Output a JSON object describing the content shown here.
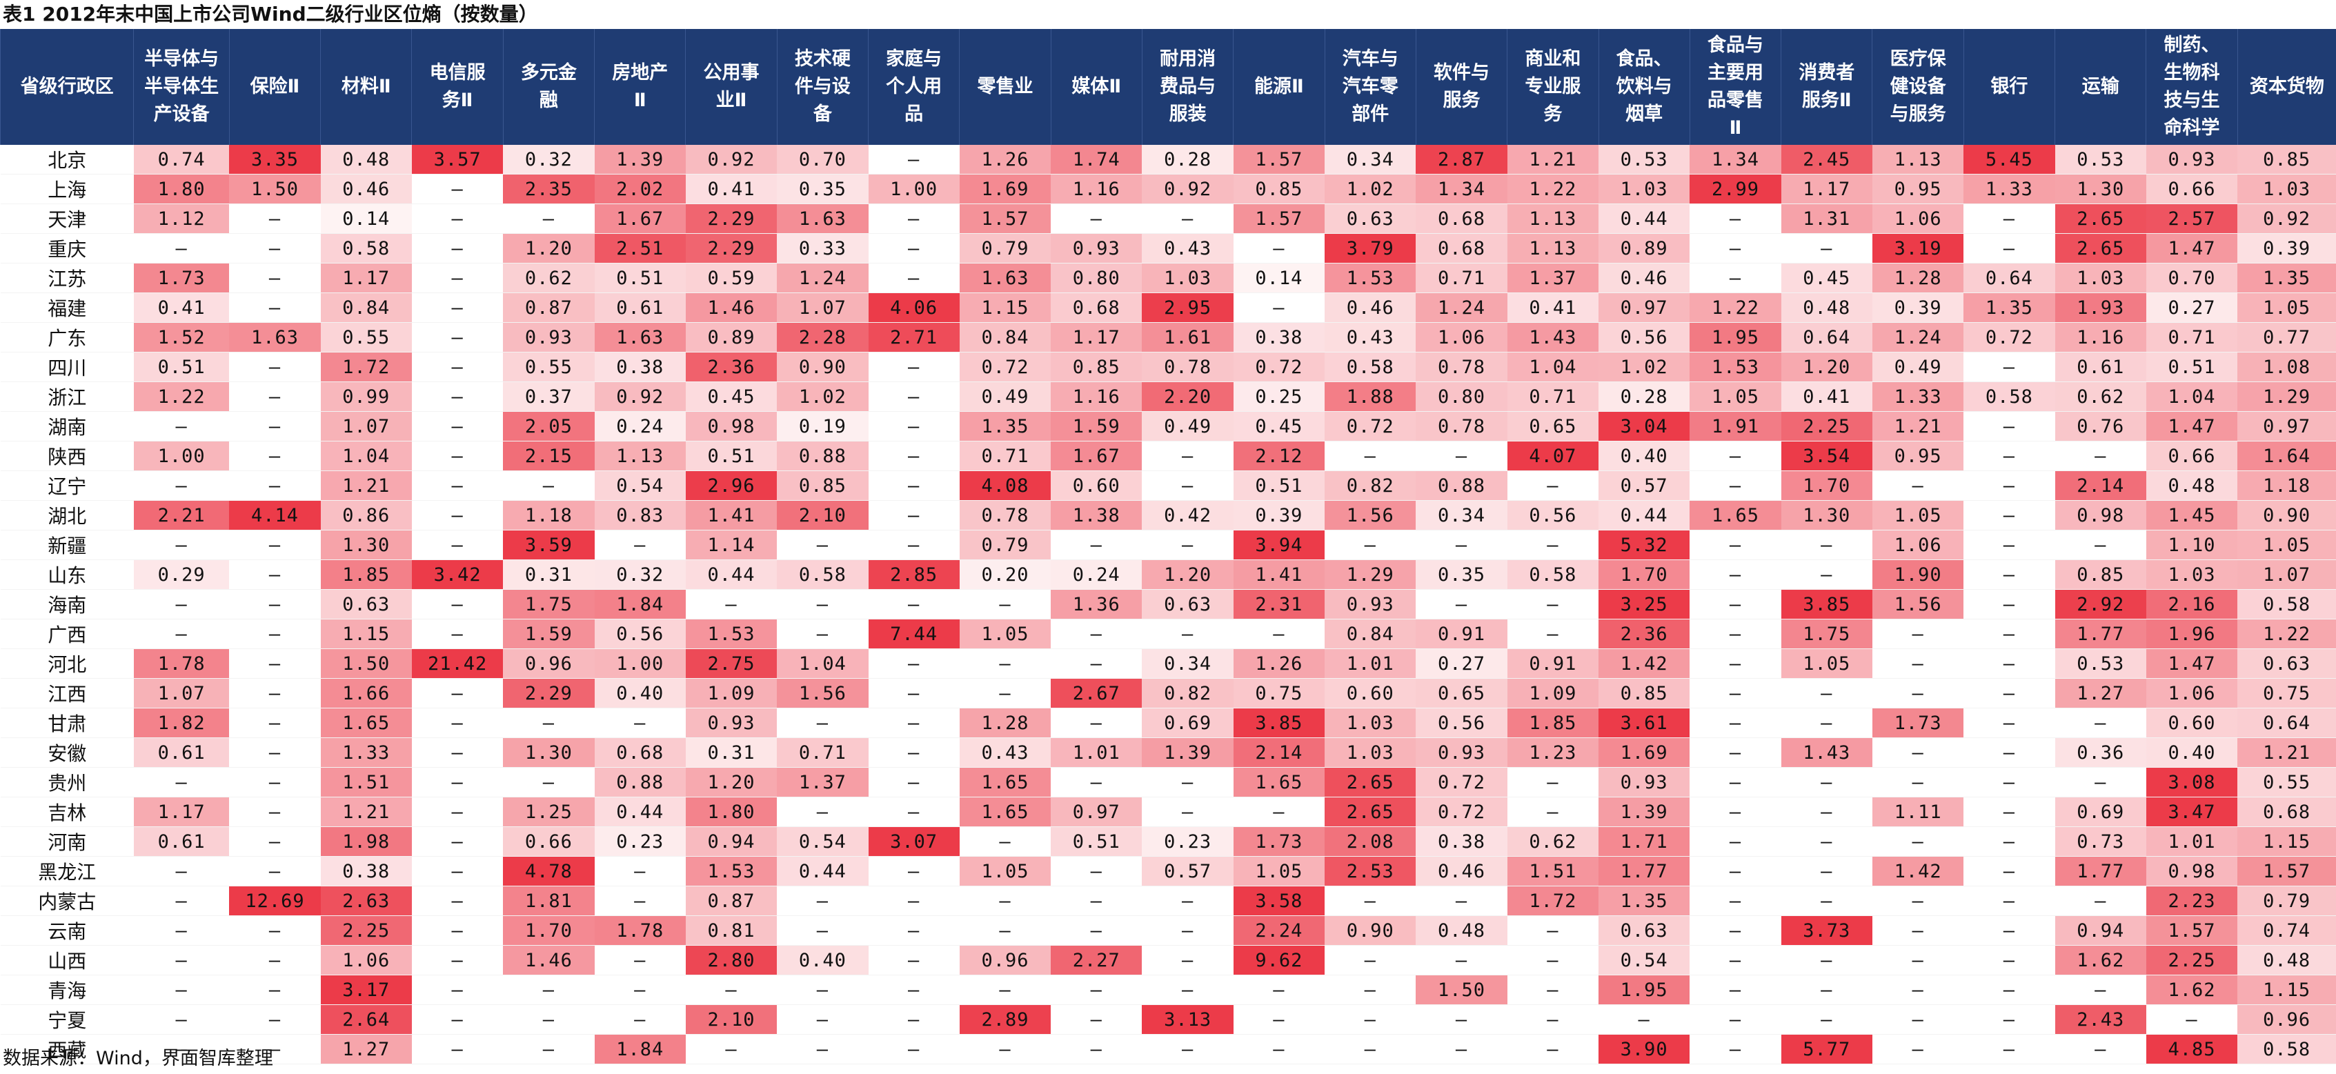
{
  "title": "表1 2012年末中国上市公司Wind二级行业区位熵（按数量）",
  "source": "数据来源：Wind，界面智库整理",
  "scale": {
    "min": 0,
    "max": 3,
    "high_color": "#ec3b49",
    "low_color": "#ffffff"
  },
  "headers": [
    [
      "省级行政区"
    ],
    [
      "半导体与",
      "半导体生",
      "产设备"
    ],
    [
      "保险Ⅱ"
    ],
    [
      "材料Ⅱ"
    ],
    [
      "电信服",
      "务Ⅱ"
    ],
    [
      "多元金",
      "融"
    ],
    [
      "房地产",
      "Ⅱ"
    ],
    [
      "公用事",
      "业Ⅱ"
    ],
    [
      "技术硬",
      "件与设",
      "备"
    ],
    [
      "家庭与",
      "个人用",
      "品"
    ],
    [
      "零售业"
    ],
    [
      "媒体Ⅱ"
    ],
    [
      "耐用消",
      "费品与",
      "服装"
    ],
    [
      "能源Ⅱ"
    ],
    [
      "汽车与",
      "汽车零",
      "部件"
    ],
    [
      "软件与",
      "服务"
    ],
    [
      "商业和",
      "专业服",
      "务"
    ],
    [
      "食品、",
      "饮料与",
      "烟草"
    ],
    [
      "食品与",
      "主要用",
      "品零售",
      "Ⅱ"
    ],
    [
      "消费者",
      "服务Ⅱ"
    ],
    [
      "医疗保",
      "健设备",
      "与服务"
    ],
    [
      "银行"
    ],
    [
      "运输"
    ],
    [
      "制药、",
      "生物科",
      "技与生",
      "命科学"
    ],
    [
      "资本货物"
    ]
  ],
  "rows": [
    {
      "province": "北京",
      "values": [
        "0.74",
        "3.35",
        "0.48",
        "3.57",
        "0.32",
        "1.39",
        "0.92",
        "0.70",
        "–",
        "1.26",
        "1.74",
        "0.28",
        "1.57",
        "0.34",
        "2.87",
        "1.21",
        "0.53",
        "1.34",
        "2.45",
        "1.13",
        "5.45",
        "0.53",
        "0.93",
        "0.85"
      ]
    },
    {
      "province": "上海",
      "values": [
        "1.80",
        "1.50",
        "0.46",
        "–",
        "2.35",
        "2.02",
        "0.41",
        "0.35",
        "1.00",
        "1.69",
        "1.16",
        "0.92",
        "0.85",
        "1.02",
        "1.34",
        "1.22",
        "1.03",
        "2.99",
        "1.17",
        "0.95",
        "1.33",
        "1.30",
        "0.66",
        "1.03"
      ]
    },
    {
      "province": "天津",
      "values": [
        "1.12",
        "–",
        "0.14",
        "–",
        "–",
        "1.67",
        "2.29",
        "1.63",
        "–",
        "1.57",
        "–",
        "–",
        "1.57",
        "0.63",
        "0.68",
        "1.13",
        "0.44",
        "–",
        "1.31",
        "1.06",
        "–",
        "2.65",
        "2.57",
        "0.92"
      ]
    },
    {
      "province": "重庆",
      "values": [
        "–",
        "–",
        "0.58",
        "–",
        "1.20",
        "2.51",
        "2.29",
        "0.33",
        "–",
        "0.79",
        "0.93",
        "0.43",
        "–",
        "3.79",
        "0.68",
        "1.13",
        "0.89",
        "–",
        "–",
        "3.19",
        "–",
        "2.65",
        "1.47",
        "0.39"
      ]
    },
    {
      "province": "江苏",
      "values": [
        "1.73",
        "–",
        "1.17",
        "–",
        "0.62",
        "0.51",
        "0.59",
        "1.24",
        "–",
        "1.63",
        "0.80",
        "1.03",
        "0.14",
        "1.53",
        "0.71",
        "1.37",
        "0.46",
        "–",
        "0.45",
        "1.28",
        "0.64",
        "1.03",
        "0.70",
        "1.35"
      ]
    },
    {
      "province": "福建",
      "values": [
        "0.41",
        "–",
        "0.84",
        "–",
        "0.87",
        "0.61",
        "1.46",
        "1.07",
        "4.06",
        "1.15",
        "0.68",
        "2.95",
        "–",
        "0.46",
        "1.24",
        "0.41",
        "0.97",
        "1.22",
        "0.48",
        "0.39",
        "1.35",
        "1.93",
        "0.27",
        "1.05"
      ]
    },
    {
      "province": "广东",
      "values": [
        "1.52",
        "1.63",
        "0.55",
        "–",
        "0.93",
        "1.63",
        "0.89",
        "2.28",
        "2.71",
        "0.84",
        "1.17",
        "1.61",
        "0.38",
        "0.43",
        "1.06",
        "1.43",
        "0.56",
        "1.95",
        "0.64",
        "1.24",
        "0.72",
        "1.16",
        "0.71",
        "0.77"
      ]
    },
    {
      "province": "四川",
      "values": [
        "0.51",
        "–",
        "1.72",
        "–",
        "0.55",
        "0.38",
        "2.36",
        "0.90",
        "–",
        "0.72",
        "0.85",
        "0.78",
        "0.72",
        "0.58",
        "0.78",
        "1.04",
        "1.02",
        "1.53",
        "1.20",
        "0.49",
        "–",
        "0.61",
        "0.51",
        "1.08"
      ]
    },
    {
      "province": "浙江",
      "values": [
        "1.22",
        "–",
        "0.99",
        "–",
        "0.37",
        "0.92",
        "0.45",
        "1.02",
        "–",
        "0.49",
        "1.16",
        "2.20",
        "0.25",
        "1.88",
        "0.80",
        "0.71",
        "0.28",
        "1.05",
        "0.41",
        "1.33",
        "0.58",
        "0.62",
        "1.04",
        "1.29"
      ]
    },
    {
      "province": "湖南",
      "values": [
        "–",
        "–",
        "1.07",
        "–",
        "2.05",
        "0.24",
        "0.98",
        "0.19",
        "–",
        "1.35",
        "1.59",
        "0.49",
        "0.45",
        "0.72",
        "0.78",
        "0.65",
        "3.04",
        "1.91",
        "2.25",
        "1.21",
        "–",
        "0.76",
        "1.47",
        "0.97"
      ]
    },
    {
      "province": "陕西",
      "values": [
        "1.00",
        "–",
        "1.04",
        "–",
        "2.15",
        "1.13",
        "0.51",
        "0.88",
        "–",
        "0.71",
        "1.67",
        "–",
        "2.12",
        "–",
        "–",
        "4.07",
        "0.40",
        "–",
        "3.54",
        "0.95",
        "–",
        "–",
        "0.66",
        "1.64"
      ]
    },
    {
      "province": "辽宁",
      "values": [
        "–",
        "–",
        "1.21",
        "–",
        "–",
        "0.54",
        "2.96",
        "0.85",
        "–",
        "4.08",
        "0.60",
        "–",
        "0.51",
        "0.82",
        "0.88",
        "–",
        "0.57",
        "–",
        "1.70",
        "–",
        "–",
        "2.14",
        "0.48",
        "1.18"
      ]
    },
    {
      "province": "湖北",
      "values": [
        "2.21",
        "4.14",
        "0.86",
        "–",
        "1.18",
        "0.83",
        "1.41",
        "2.10",
        "–",
        "0.78",
        "1.38",
        "0.42",
        "0.39",
        "1.56",
        "0.34",
        "0.56",
        "0.44",
        "1.65",
        "1.30",
        "1.05",
        "–",
        "0.98",
        "1.45",
        "0.90"
      ]
    },
    {
      "province": "新疆",
      "values": [
        "–",
        "–",
        "1.30",
        "–",
        "3.59",
        "–",
        "1.14",
        "–",
        "–",
        "0.79",
        "–",
        "–",
        "3.94",
        "–",
        "–",
        "–",
        "5.32",
        "–",
        "–",
        "1.06",
        "–",
        "–",
        "1.10",
        "1.05"
      ]
    },
    {
      "province": "山东",
      "values": [
        "0.29",
        "–",
        "1.85",
        "3.42",
        "0.31",
        "0.32",
        "0.44",
        "0.58",
        "2.85",
        "0.20",
        "0.24",
        "1.20",
        "1.41",
        "1.29",
        "0.35",
        "0.58",
        "1.70",
        "–",
        "–",
        "1.90",
        "–",
        "0.85",
        "1.03",
        "1.07"
      ]
    },
    {
      "province": "海南",
      "values": [
        "–",
        "–",
        "0.63",
        "–",
        "1.75",
        "1.84",
        "–",
        "–",
        "–",
        "–",
        "1.36",
        "0.63",
        "2.31",
        "0.93",
        "–",
        "–",
        "3.25",
        "–",
        "3.85",
        "1.56",
        "–",
        "2.92",
        "2.16",
        "0.58"
      ]
    },
    {
      "province": "广西",
      "values": [
        "–",
        "–",
        "1.15",
        "–",
        "1.59",
        "0.56",
        "1.53",
        "–",
        "7.44",
        "1.05",
        "–",
        "–",
        "–",
        "0.84",
        "0.91",
        "–",
        "2.36",
        "–",
        "1.75",
        "–",
        "–",
        "1.77",
        "1.96",
        "1.22"
      ]
    },
    {
      "province": "河北",
      "values": [
        "1.78",
        "–",
        "1.50",
        "21.42",
        "0.96",
        "1.00",
        "2.75",
        "1.04",
        "–",
        "–",
        "–",
        "0.34",
        "1.26",
        "1.01",
        "0.27",
        "0.91",
        "1.42",
        "–",
        "1.05",
        "–",
        "–",
        "0.53",
        "1.47",
        "0.63"
      ]
    },
    {
      "province": "江西",
      "values": [
        "1.07",
        "–",
        "1.66",
        "–",
        "2.29",
        "0.40",
        "1.09",
        "1.56",
        "–",
        "–",
        "2.67",
        "0.82",
        "0.75",
        "0.60",
        "0.65",
        "1.09",
        "0.85",
        "–",
        "–",
        "–",
        "–",
        "1.27",
        "1.06",
        "0.75"
      ]
    },
    {
      "province": "甘肃",
      "values": [
        "1.82",
        "–",
        "1.65",
        "–",
        "–",
        "–",
        "0.93",
        "–",
        "–",
        "1.28",
        "–",
        "0.69",
        "3.85",
        "1.03",
        "0.56",
        "1.85",
        "3.61",
        "–",
        "–",
        "1.73",
        "–",
        "–",
        "0.60",
        "0.64"
      ]
    },
    {
      "province": "安徽",
      "values": [
        "0.61",
        "–",
        "1.33",
        "–",
        "1.30",
        "0.68",
        "0.31",
        "0.71",
        "–",
        "0.43",
        "1.01",
        "1.39",
        "2.14",
        "1.03",
        "0.93",
        "1.23",
        "1.69",
        "–",
        "1.43",
        "–",
        "–",
        "0.36",
        "0.40",
        "1.21"
      ]
    },
    {
      "province": "贵州",
      "values": [
        "–",
        "–",
        "1.51",
        "–",
        "–",
        "0.88",
        "1.20",
        "1.37",
        "–",
        "1.65",
        "–",
        "–",
        "1.65",
        "2.65",
        "0.72",
        "–",
        "0.93",
        "–",
        "–",
        "–",
        "–",
        "–",
        "3.08",
        "0.55"
      ]
    },
    {
      "province": "吉林",
      "values": [
        "1.17",
        "–",
        "1.21",
        "–",
        "1.25",
        "0.44",
        "1.80",
        "–",
        "–",
        "1.65",
        "0.97",
        "–",
        "–",
        "2.65",
        "0.72",
        "–",
        "1.39",
        "–",
        "–",
        "1.11",
        "–",
        "0.69",
        "3.47",
        "0.68"
      ]
    },
    {
      "province": "河南",
      "values": [
        "0.61",
        "–",
        "1.98",
        "–",
        "0.66",
        "0.23",
        "0.94",
        "0.54",
        "3.07",
        "–",
        "0.51",
        "0.23",
        "1.73",
        "2.08",
        "0.38",
        "0.62",
        "1.71",
        "–",
        "–",
        "–",
        "–",
        "0.73",
        "1.01",
        "1.15"
      ]
    },
    {
      "province": "黑龙江",
      "values": [
        "–",
        "–",
        "0.38",
        "–",
        "4.78",
        "–",
        "1.53",
        "0.44",
        "–",
        "1.05",
        "–",
        "0.57",
        "1.05",
        "2.53",
        "0.46",
        "1.51",
        "1.77",
        "–",
        "–",
        "1.42",
        "–",
        "1.77",
        "0.98",
        "1.57"
      ]
    },
    {
      "province": "内蒙古",
      "values": [
        "–",
        "12.69",
        "2.63",
        "–",
        "1.81",
        "–",
        "0.87",
        "–",
        "–",
        "–",
        "–",
        "–",
        "3.58",
        "–",
        "–",
        "1.72",
        "1.35",
        "–",
        "–",
        "–",
        "–",
        "–",
        "2.23",
        "0.79"
      ]
    },
    {
      "province": "云南",
      "values": [
        "–",
        "–",
        "2.25",
        "–",
        "1.70",
        "1.78",
        "0.81",
        "–",
        "–",
        "–",
        "–",
        "–",
        "2.24",
        "0.90",
        "0.48",
        "–",
        "0.63",
        "–",
        "3.73",
        "–",
        "–",
        "0.94",
        "1.57",
        "0.74"
      ]
    },
    {
      "province": "山西",
      "values": [
        "–",
        "–",
        "1.06",
        "–",
        "1.46",
        "–",
        "2.80",
        "0.40",
        "–",
        "0.96",
        "2.27",
        "–",
        "9.62",
        "–",
        "–",
        "–",
        "0.54",
        "–",
        "–",
        "–",
        "–",
        "1.62",
        "2.25",
        "0.48"
      ]
    },
    {
      "province": "青海",
      "values": [
        "–",
        "–",
        "3.17",
        "–",
        "–",
        "–",
        "–",
        "–",
        "–",
        "–",
        "–",
        "–",
        "–",
        "–",
        "1.50",
        "–",
        "1.95",
        "–",
        "–",
        "–",
        "–",
        "–",
        "1.62",
        "1.15"
      ]
    },
    {
      "province": "宁夏",
      "values": [
        "–",
        "–",
        "2.64",
        "–",
        "–",
        "–",
        "2.10",
        "–",
        "–",
        "2.89",
        "–",
        "3.13",
        "–",
        "–",
        "–",
        "–",
        "–",
        "–",
        "–",
        "–",
        "–",
        "2.43",
        "–",
        "0.96"
      ]
    },
    {
      "province": "西藏",
      "values": [
        "–",
        "–",
        "1.27",
        "–",
        "–",
        "1.84",
        "–",
        "–",
        "–",
        "–",
        "–",
        "–",
        "–",
        "–",
        "–",
        "–",
        "3.90",
        "–",
        "5.77",
        "–",
        "–",
        "–",
        "4.85",
        "0.58"
      ]
    }
  ]
}
